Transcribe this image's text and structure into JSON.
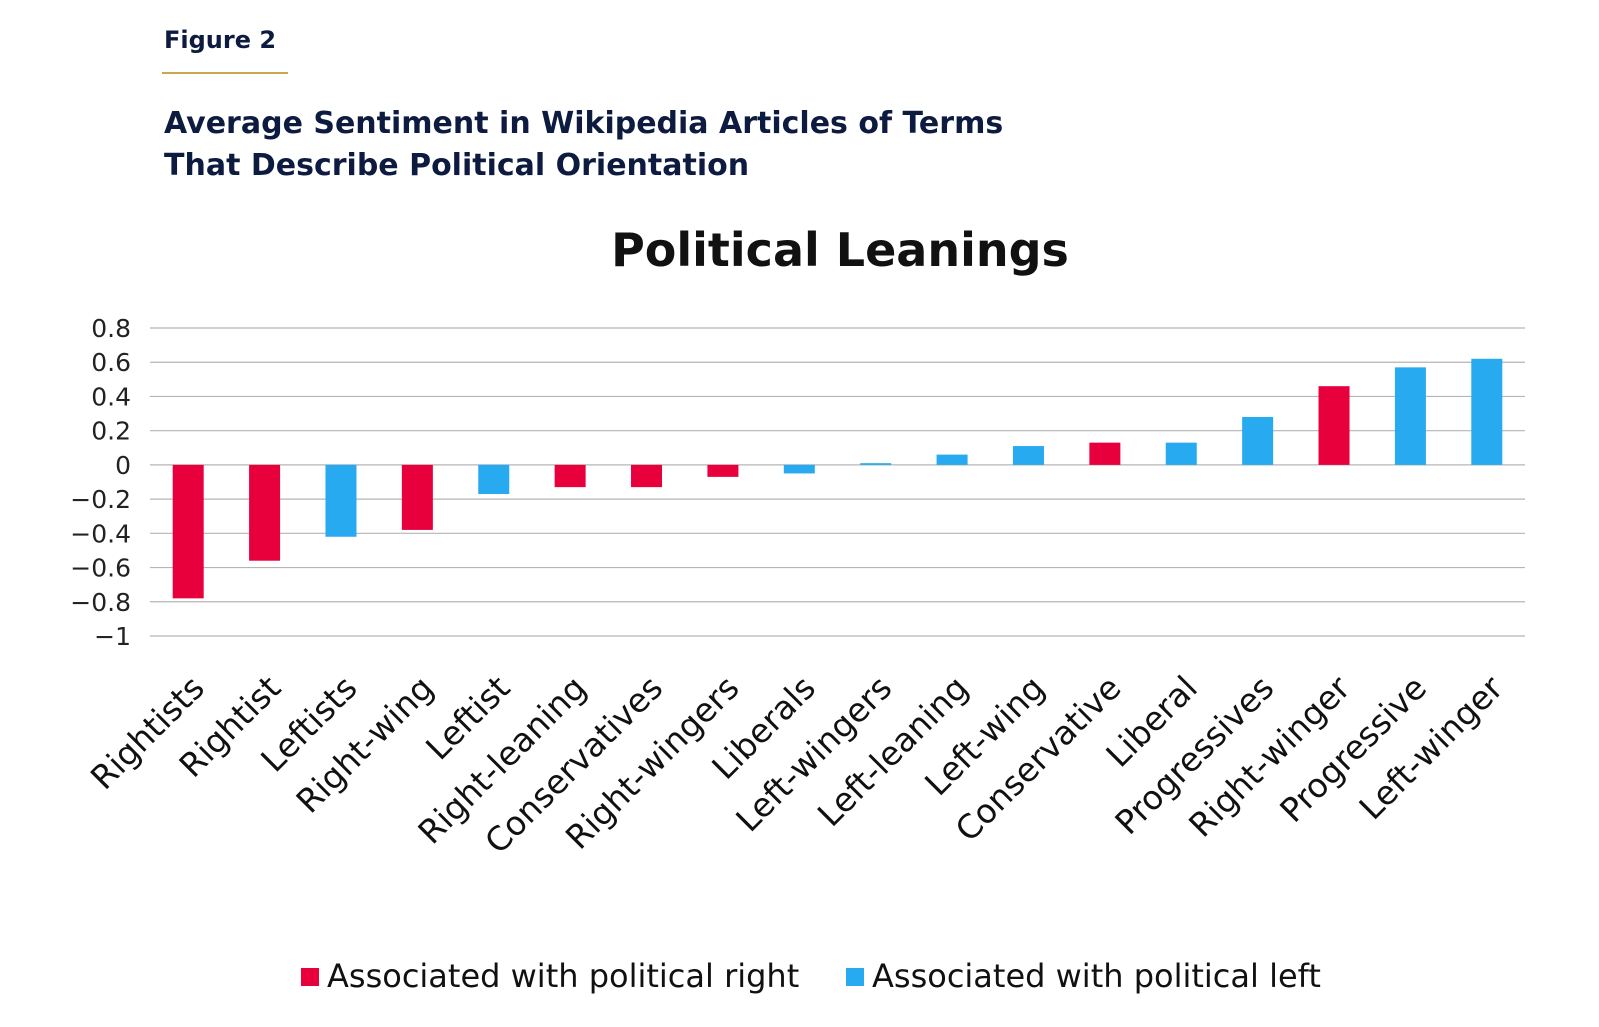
{
  "figure": {
    "label": "Figure 2",
    "title_line1": "Average Sentiment in Wikipedia Articles of Terms",
    "title_line2": "That Describe Political Orientation"
  },
  "colors": {
    "right": "#e8003d",
    "left": "#27aaf0",
    "accent": "#c9a84c",
    "navy": "#0d1b40"
  },
  "chart_data": {
    "type": "bar",
    "title": "Political Leanings",
    "xlabel": "",
    "ylabel": "",
    "ylim": [
      -1,
      0.8
    ],
    "yticks": [
      0.8,
      0.6,
      0.4,
      0.2,
      0,
      -0.2,
      -0.4,
      -0.6,
      -0.8,
      -1
    ],
    "ytick_labels": [
      "0.8",
      "0.6",
      "0.4",
      "0.2",
      "0",
      "−0.2",
      "−0.4",
      "−0.6",
      "−0.8",
      "−1"
    ],
    "grid": true,
    "legend_position": "bottom",
    "categories": [
      "Rightists",
      "Rightist",
      "Leftists",
      "Right-wing",
      "Leftist",
      "Right-leaning",
      "Conservatives",
      "Right-wingers",
      "Liberals",
      "Left-wingers",
      "Left-leaning",
      "Left-wing",
      "Conservative",
      "Liberal",
      "Progressives",
      "Right-winger",
      "Progressive",
      "Left-winger"
    ],
    "values": [
      -0.78,
      -0.56,
      -0.42,
      -0.38,
      -0.17,
      -0.13,
      -0.13,
      -0.07,
      -0.05,
      0.01,
      0.06,
      0.11,
      0.13,
      0.13,
      0.28,
      0.46,
      0.57,
      0.62
    ],
    "groups": [
      "right",
      "right",
      "left",
      "right",
      "left",
      "right",
      "right",
      "right",
      "left",
      "left",
      "left",
      "left",
      "right",
      "left",
      "left",
      "right",
      "left",
      "left"
    ],
    "legend": [
      {
        "key": "right",
        "label": "Associated with political right"
      },
      {
        "key": "left",
        "label": "Associated with political left"
      }
    ]
  }
}
